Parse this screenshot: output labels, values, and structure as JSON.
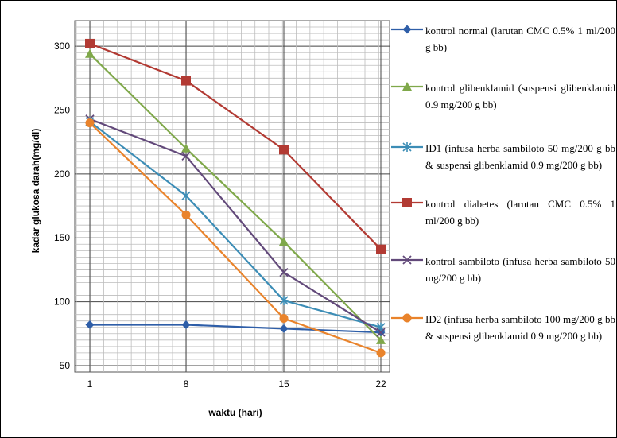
{
  "chart_data": {
    "type": "line",
    "xlabel": "waktu (hari)",
    "ylabel": "kadar glukosa darah(mg/dl)",
    "categories": [
      "1",
      "8",
      "15",
      "22"
    ],
    "yticks": [
      50,
      100,
      150,
      200,
      250,
      300
    ],
    "ylim": [
      45,
      320
    ],
    "grid": true,
    "legend_position": "right",
    "series": [
      {
        "name": "kontrol normal (larutan CMC 0.5% 1 ml/200 g bb)",
        "color": "#2e5ea8",
        "marker": "diamond",
        "values": [
          82,
          82,
          79,
          76
        ]
      },
      {
        "name": "kontrol glibenklamid (suspensi glibenklamid 0.9 mg/200 g bb)",
        "color": "#7fa84a",
        "marker": "triangle",
        "values": [
          294,
          220,
          147,
          70
        ]
      },
      {
        "name": "ID1 (infusa herba sambiloto 50 mg/200 g bb & suspensi glibenklamid 0.9 mg/200 g bb)",
        "color": "#3c8db6",
        "marker": "asterisk",
        "values": [
          241,
          183,
          101,
          80
        ]
      },
      {
        "name": "kontrol diabetes (larutan CMC 0.5% 1 ml/200 g bb)",
        "color": "#b23a33",
        "marker": "square",
        "values": [
          302,
          273,
          219,
          141
        ]
      },
      {
        "name": "kontrol sambiloto (infusa herba sambiloto 50 mg/200 g bb)",
        "color": "#62497a",
        "marker": "x",
        "values": [
          243,
          214,
          123,
          76
        ]
      },
      {
        "name": "ID2 (infusa herba sambiloto 100 mg/200 g bb & suspensi glibenklamid 0.9 mg/200 g bb)",
        "color": "#e9832b",
        "marker": "circle",
        "values": [
          240,
          168,
          87,
          60
        ]
      }
    ]
  }
}
